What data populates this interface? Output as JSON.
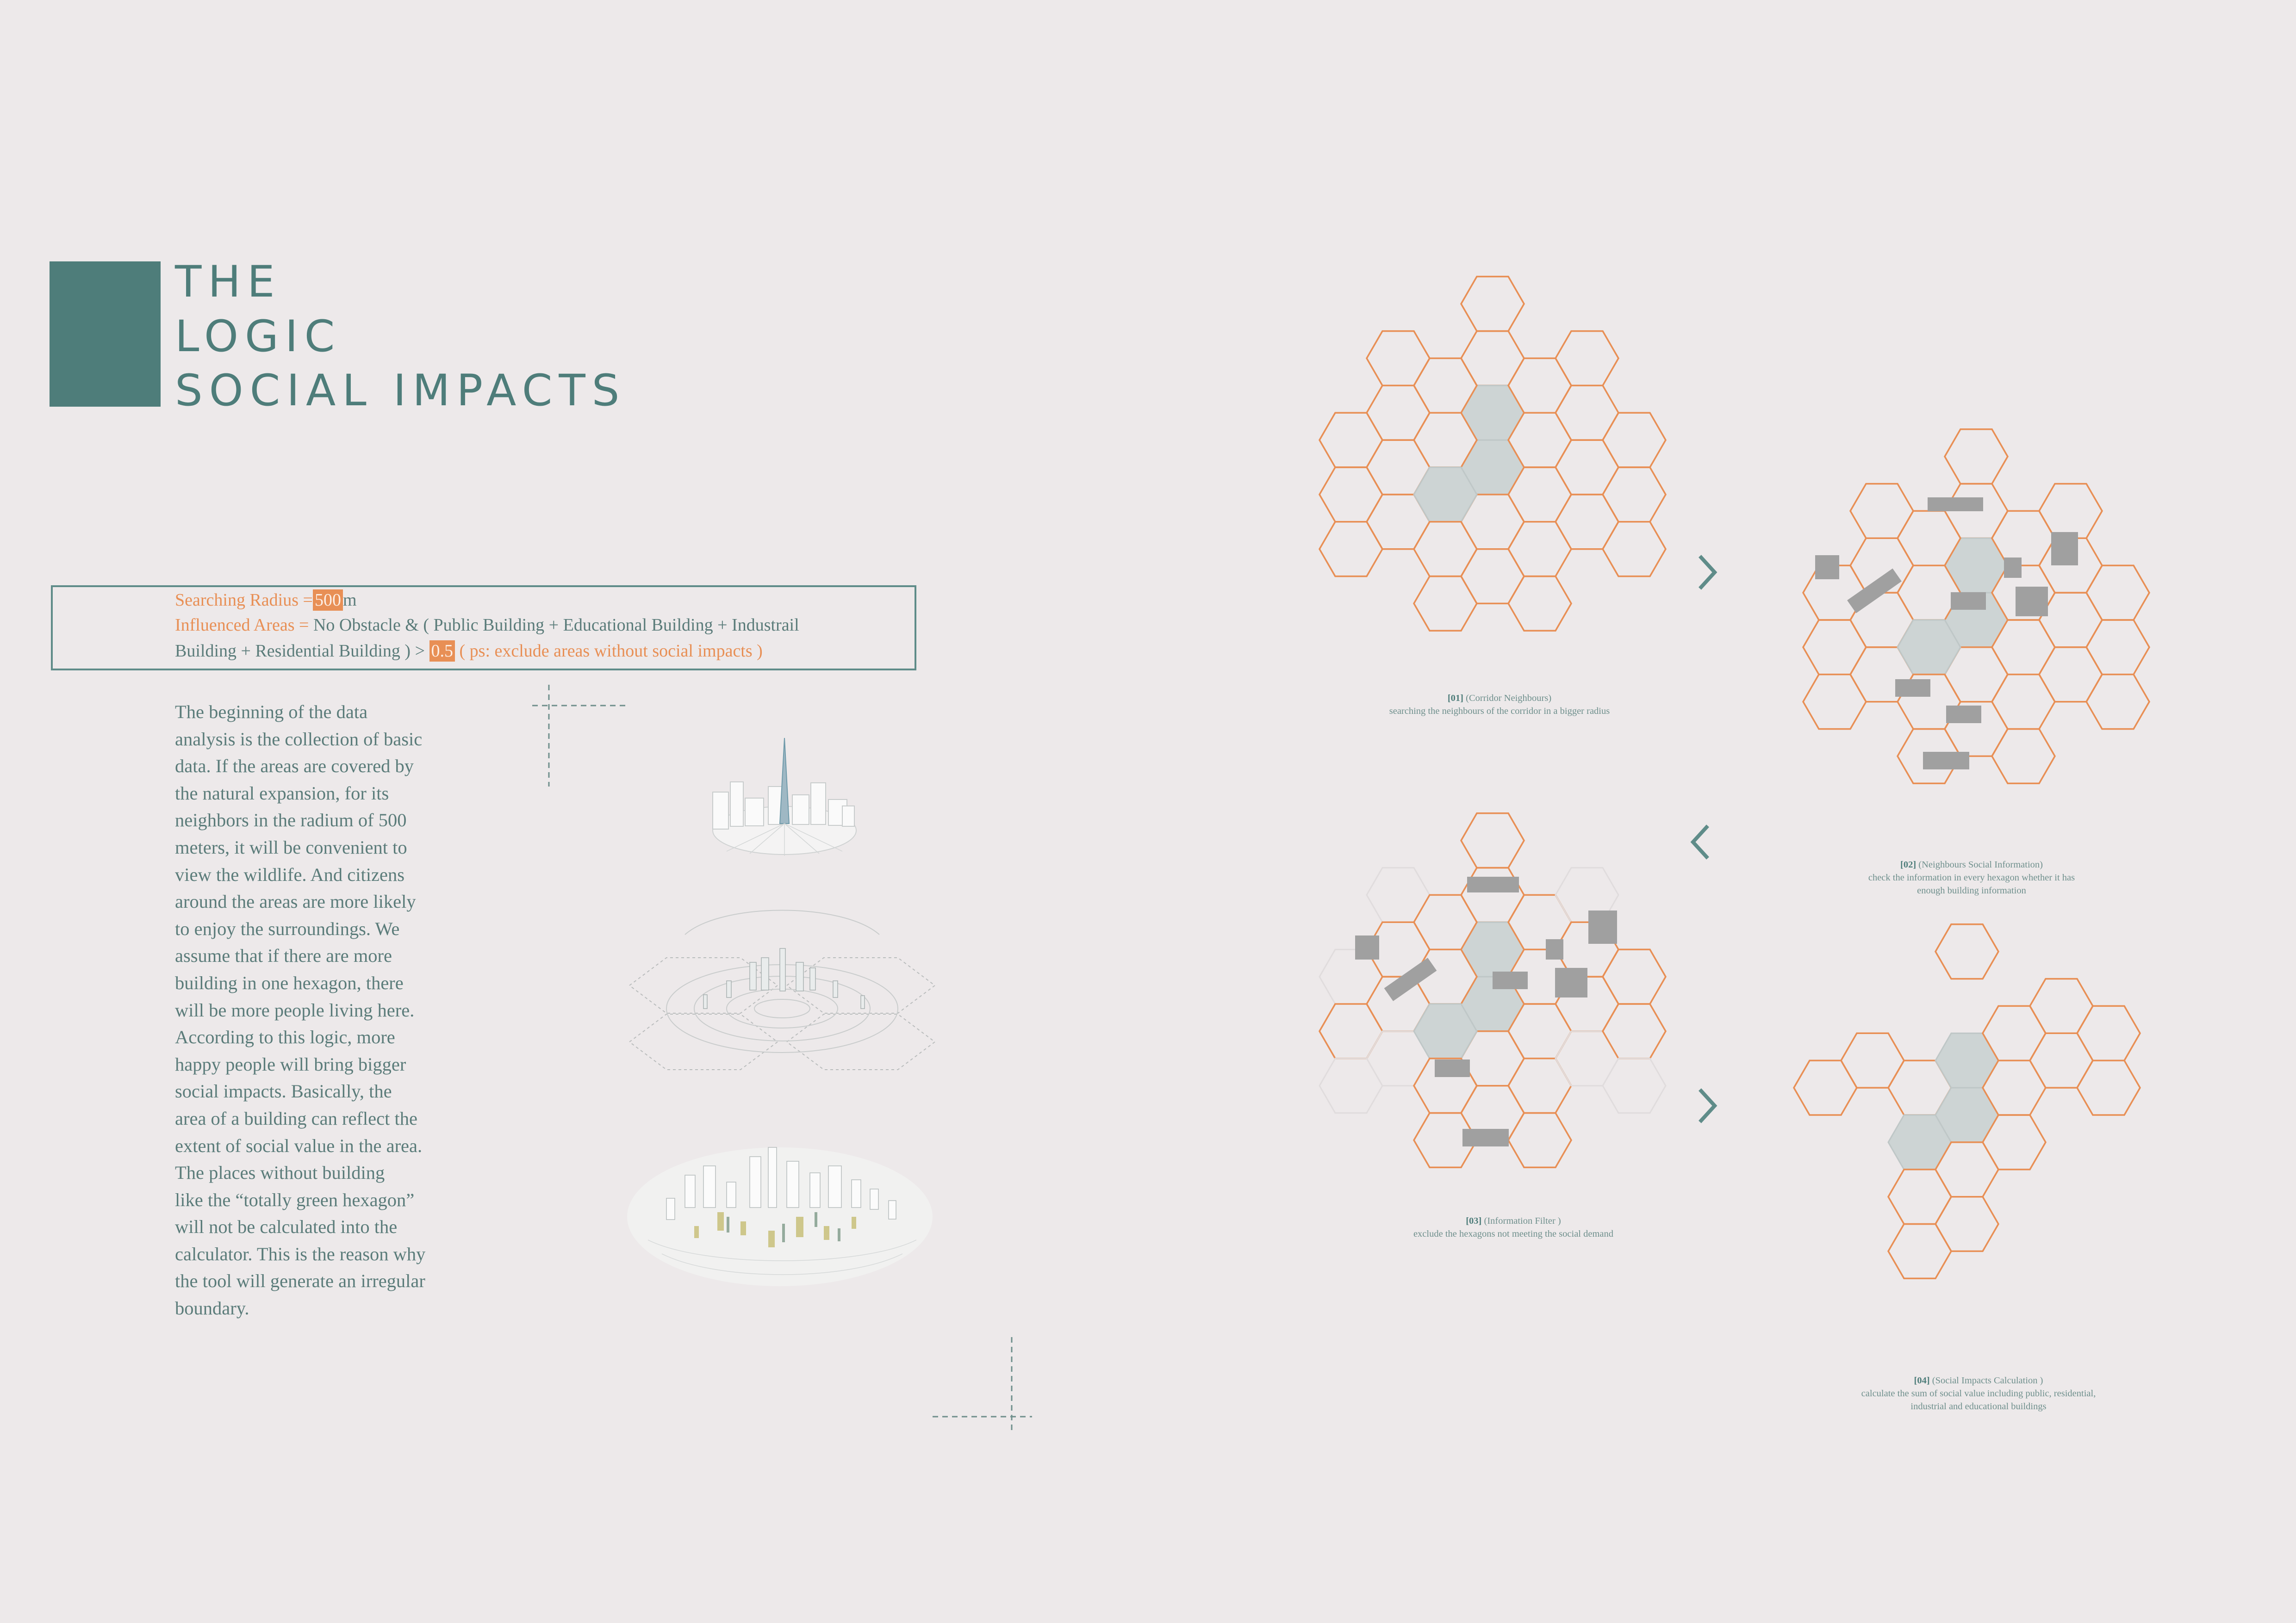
{
  "title": {
    "line1": "THE",
    "line2": "LOGIC",
    "line3": "SOCIAL IMPACTS"
  },
  "formula": {
    "radius_label": "Searching Radius",
    "equals": "=",
    "radius_value": "500",
    "radius_unit": "m",
    "influenced_label": "Influenced Areas",
    "influenced_eq": "=",
    "influenced_text_1": "No Obstacle & ( Public Building + Educational Building + Industrail",
    "influenced_text_2": "Building + Residential Building ) >",
    "threshold_value": "0.5",
    "note": "( ps: exclude areas without social impacts )"
  },
  "body_lines": [
    "The beginning of the data",
    "analysis is the collection of basic",
    "data. If the areas are covered by",
    "the natural expansion, for its",
    "neighbors in the radium of 500",
    "meters, it will be convenient to",
    "view the wildlife. And citizens",
    "around the areas are more likely",
    "to enjoy the surroundings. We",
    "assume that if there are more",
    "building in one hexagon, there",
    "will be more people living here.",
    "According to this logic, more",
    "happy people will bring bigger",
    "social impacts. Basically, the",
    "area of a building can reflect the",
    "extent of social value in the area.",
    "The places without building",
    "like the “totally green hexagon”",
    "will not be calculated into the",
    "calculator. This is the reason why",
    "the tool will generate an irregular",
    "boundary."
  ],
  "steps": [
    {
      "num": "[01]",
      "name": "(Corridor Neighbours)",
      "desc": [
        "searching the neighbours of the corridor in a bigger radius"
      ]
    },
    {
      "num": "[02]",
      "name": "(Neighbours Social Information)",
      "desc": [
        "check the information in every hexagon whether it has",
        "enough building information"
      ]
    },
    {
      "num": "[03]",
      "name": "(Information Filter )",
      "desc": [
        "exclude the hexagons not meeting the social demand"
      ]
    },
    {
      "num": "[04]",
      "name": "(Social Impacts Calculation )",
      "desc": [
        "calculate the sum of social value including public, residential,",
        "industrial and educational buildings"
      ]
    }
  ],
  "icons": {
    "arrow_right": "chevron-right-icon",
    "arrow_left": "chevron-left-icon"
  },
  "colors": {
    "background": "#ede9ea",
    "teal": "#4e7d7a",
    "orange": "#e88f55",
    "hex_fill": "#cdd4d4",
    "building": "#a0a0a0",
    "faded_hex": "#e0dcdd"
  }
}
